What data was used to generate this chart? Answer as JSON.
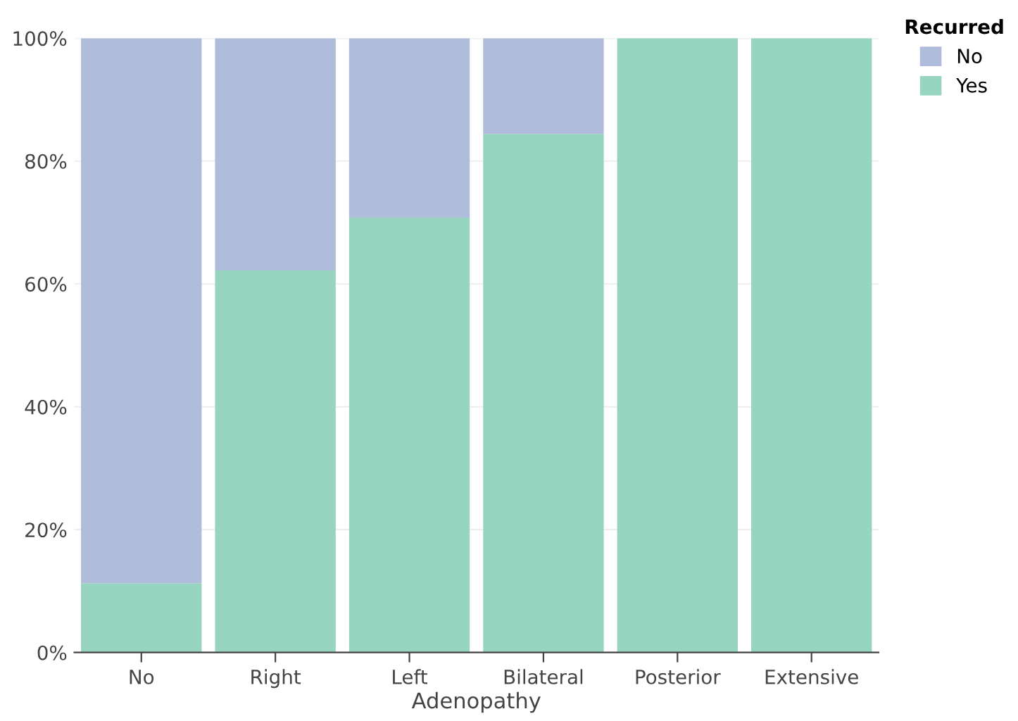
{
  "chart_data": {
    "type": "bar",
    "stacked": true,
    "xlabel": "Adenopathy",
    "legend_title": "Recurred",
    "legend": "top right",
    "categories": [
      "No",
      "Right",
      "Left",
      "Bilateral",
      "Posterior",
      "Extensive"
    ],
    "series": [
      {
        "name": "Yes",
        "color": "#97d5c0",
        "values": [
          11.3,
          62.2,
          70.8,
          84.4,
          100,
          100
        ]
      },
      {
        "name": "No",
        "color": "#b0bcdb",
        "values": [
          88.7,
          37.8,
          29.2,
          15.6,
          0,
          0
        ]
      }
    ],
    "ylim": [
      0,
      100
    ],
    "yticks": [
      {
        "value": 0,
        "label": "0%"
      },
      {
        "value": 20,
        "label": "20%"
      },
      {
        "value": 40,
        "label": "40%"
      },
      {
        "value": 60,
        "label": "60%"
      },
      {
        "value": 80,
        "label": "80%"
      },
      {
        "value": 100,
        "label": "100%"
      }
    ],
    "grid": "y"
  }
}
